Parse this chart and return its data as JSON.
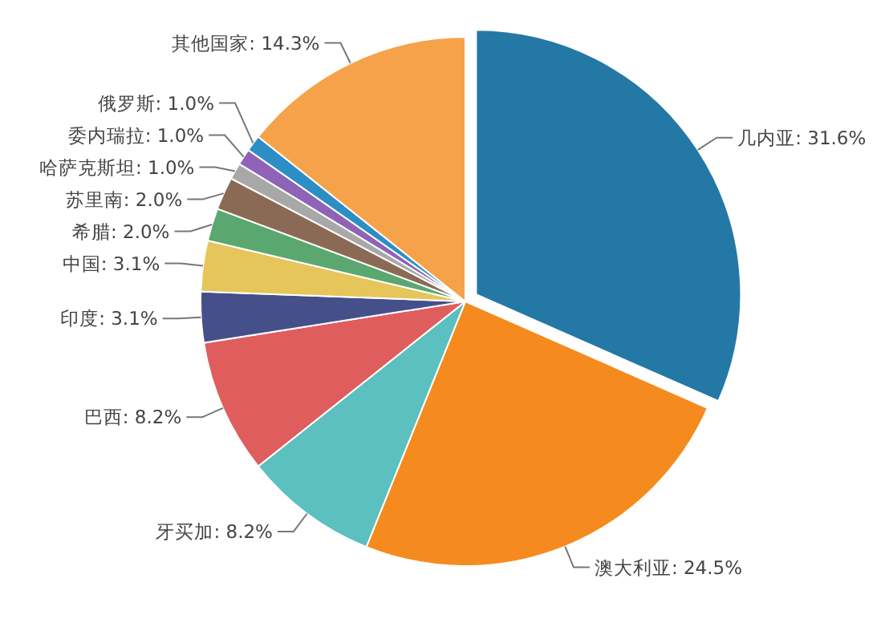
{
  "chart_data": {
    "type": "pie",
    "categories": [
      "几内亚",
      "澳大利亚",
      "牙买加",
      "巴西",
      "印度",
      "中国",
      "希腊",
      "苏里南",
      "哈萨克斯坦",
      "委内瑞拉",
      "俄罗斯",
      "其他国家"
    ],
    "values": [
      31.6,
      24.5,
      8.2,
      8.2,
      3.1,
      3.1,
      2.0,
      2.0,
      1.0,
      1.0,
      1.0,
      14.3
    ],
    "value_labels": [
      "31.6%",
      "24.5%",
      "8.2%",
      "8.2%",
      "3.1%",
      "3.1%",
      "2.0%",
      "2.0%",
      "1.0%",
      "1.0%",
      "1.0%",
      "14.3%"
    ],
    "colors": [
      "#2478a5",
      "#f58b1f",
      "#5cbfc0",
      "#e05d5d",
      "#45508a",
      "#e6c65a",
      "#5aa870",
      "#8b6a55",
      "#a8a8a8",
      "#8e63b8",
      "#2d8ec6",
      "#f6a24a"
    ]
  }
}
